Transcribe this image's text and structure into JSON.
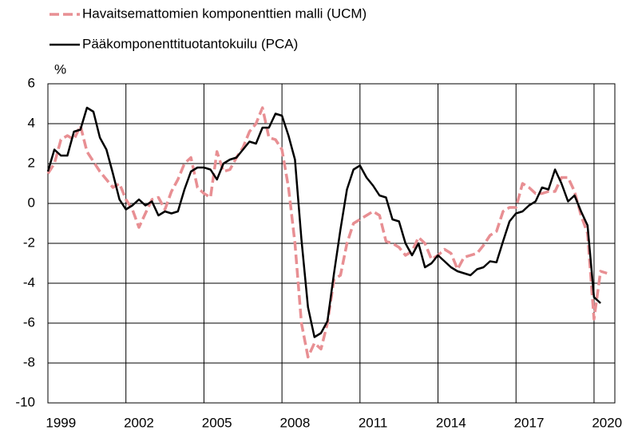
{
  "chart_data": {
    "type": "line",
    "y_label": "%",
    "x": [
      1999,
      1999.25,
      1999.5,
      1999.75,
      2000,
      2000.25,
      2000.5,
      2000.75,
      2001,
      2001.25,
      2001.5,
      2001.75,
      2002,
      2002.25,
      2002.5,
      2002.75,
      2003,
      2003.25,
      2003.5,
      2003.75,
      2004,
      2004.25,
      2004.5,
      2004.75,
      2005,
      2005.25,
      2005.5,
      2005.75,
      2006,
      2006.25,
      2006.5,
      2006.75,
      2007,
      2007.25,
      2007.5,
      2007.75,
      2008,
      2008.25,
      2008.5,
      2008.75,
      2009,
      2009.25,
      2009.5,
      2009.75,
      2010,
      2010.25,
      2010.5,
      2010.75,
      2011,
      2011.25,
      2011.5,
      2011.75,
      2012,
      2012.25,
      2012.5,
      2012.75,
      2013,
      2013.25,
      2013.5,
      2013.75,
      2014,
      2014.25,
      2014.5,
      2014.75,
      2015,
      2015.25,
      2015.5,
      2015.75,
      2016,
      2016.25,
      2016.5,
      2016.75,
      2017,
      2017.25,
      2017.5,
      2017.75,
      2018,
      2018.25,
      2018.5,
      2018.75,
      2019,
      2019.25,
      2019.5,
      2019.75,
      2020,
      2020.25,
      2020.5
    ],
    "series": [
      {
        "name": "Havaitsemattomien komponenttien malli (UCM)",
        "color": "#e88f93",
        "dashed": true,
        "values": [
          1.5,
          2.0,
          3.2,
          3.4,
          3.2,
          3.9,
          2.6,
          2.1,
          1.6,
          1.2,
          0.8,
          1.0,
          0.2,
          -0.3,
          -1.2,
          -0.5,
          0.2,
          0.3,
          -0.3,
          0.6,
          1.2,
          2.0,
          2.3,
          0.8,
          0.5,
          0.3,
          2.6,
          1.6,
          1.7,
          2.3,
          2.8,
          3.6,
          4.0,
          4.8,
          3.3,
          3.2,
          2.7,
          0.8,
          -2.0,
          -6.0,
          -7.7,
          -7.0,
          -7.3,
          -6.0,
          -3.8,
          -3.6,
          -2.0,
          -1.0,
          -0.8,
          -0.6,
          -0.4,
          -0.6,
          -1.9,
          -2.0,
          -2.2,
          -2.6,
          -2.4,
          -1.7,
          -2.0,
          -2.8,
          -2.6,
          -2.3,
          -2.5,
          -3.3,
          -2.7,
          -2.6,
          -2.5,
          -2.1,
          -1.6,
          -1.4,
          -0.4,
          -0.2,
          -0.2,
          1.0,
          0.8,
          0.5,
          0.5,
          0.6,
          0.6,
          1.3,
          1.3,
          0.6,
          -0.6,
          -1.5,
          -5.8,
          -3.4,
          -3.5
        ]
      },
      {
        "name": "Pääkomponenttituotantokuilu (PCA)",
        "color": "#000000",
        "dashed": false,
        "values": [
          1.6,
          2.7,
          2.4,
          2.4,
          3.6,
          3.7,
          4.8,
          4.6,
          3.3,
          2.7,
          1.5,
          0.2,
          -0.3,
          -0.1,
          0.2,
          -0.1,
          0.1,
          -0.6,
          -0.4,
          -0.5,
          -0.4,
          0.7,
          1.6,
          1.8,
          1.8,
          1.7,
          1.2,
          2.0,
          2.2,
          2.3,
          2.7,
          3.1,
          3.0,
          3.8,
          3.8,
          4.5,
          4.4,
          3.4,
          2.2,
          -1.8,
          -5.2,
          -6.7,
          -6.5,
          -5.9,
          -3.5,
          -1.3,
          0.7,
          1.7,
          1.9,
          1.3,
          0.9,
          0.4,
          0.3,
          -0.8,
          -0.9,
          -2.0,
          -2.6,
          -2.0,
          -3.2,
          -3.0,
          -2.6,
          -2.9,
          -3.2,
          -3.4,
          -3.5,
          -3.6,
          -3.3,
          -3.2,
          -2.9,
          -2.95,
          -1.9,
          -0.9,
          -0.5,
          -0.4,
          -0.1,
          0.1,
          0.8,
          0.7,
          1.7,
          1.0,
          0.1,
          0.4,
          -0.4,
          -1.1,
          -4.7,
          -5.0,
          null
        ]
      }
    ],
    "xlim": [
      1999,
      2020.8
    ],
    "xticks": [
      {
        "value": 1999,
        "label": "1999"
      },
      {
        "value": 2002,
        "label": "2002"
      },
      {
        "value": 2005,
        "label": "2005"
      },
      {
        "value": 2008,
        "label": "2008"
      },
      {
        "value": 2011,
        "label": "2011"
      },
      {
        "value": 2014,
        "label": "2014"
      },
      {
        "value": 2017,
        "label": "2017"
      },
      {
        "value": 2020,
        "label": "2020"
      }
    ],
    "ylim": [
      -10,
      6
    ],
    "yticks": [
      -10,
      -8,
      -6,
      -4,
      -2,
      0,
      2,
      4,
      6
    ],
    "grid": true,
    "legend": "top-left"
  }
}
